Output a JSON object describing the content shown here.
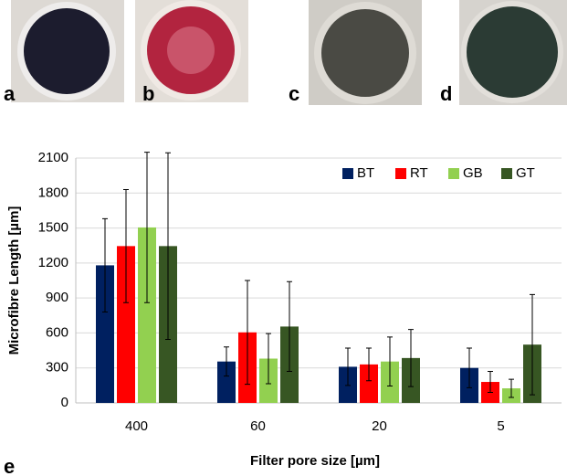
{
  "figure": {
    "panel_labels": [
      "a",
      "b",
      "c",
      "d",
      "e"
    ]
  },
  "chart_data": {
    "type": "bar",
    "x_label": "Filter pore size [µm]",
    "y_label": "Microfibre Length [µm]",
    "categories": [
      "400",
      "60",
      "20",
      "5"
    ],
    "series": [
      {
        "name": "BT",
        "color": "#002060",
        "values": [
          1180,
          355,
          310,
          300
        ],
        "errors": [
          400,
          125,
          160,
          170
        ]
      },
      {
        "name": "RT",
        "color": "#ff0000",
        "values": [
          1345,
          605,
          330,
          180
        ],
        "errors": [
          485,
          445,
          140,
          90
        ]
      },
      {
        "name": "GB",
        "color": "#92d050",
        "values": [
          1505,
          380,
          355,
          125
        ],
        "errors": [
          645,
          215,
          210,
          78
        ]
      },
      {
        "name": "GT",
        "color": "#375623",
        "values": [
          1345,
          655,
          385,
          500
        ],
        "errors": [
          800,
          385,
          245,
          430
        ]
      }
    ],
    "ylim": [
      0,
      2100
    ],
    "yticks": [
      0,
      300,
      600,
      900,
      1200,
      1500,
      1800,
      2100
    ],
    "grid": true,
    "legend": "top-right"
  }
}
